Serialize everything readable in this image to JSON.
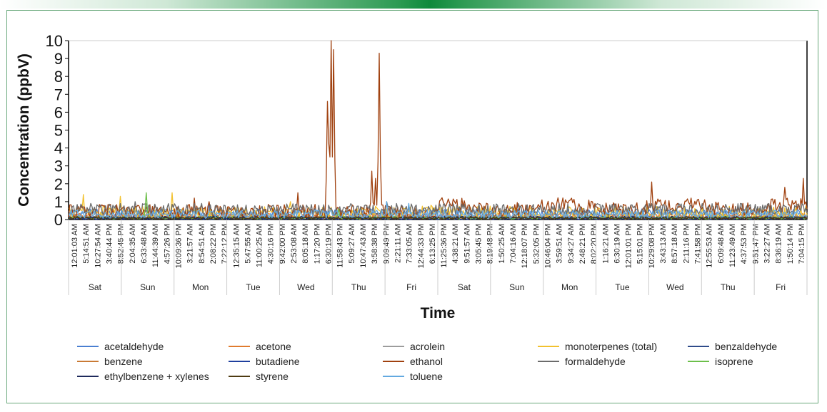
{
  "chart_data": {
    "type": "line",
    "title": "",
    "xlabel": "Time",
    "ylabel": "Concentration (ppbV)",
    "ylim": [
      0,
      10
    ],
    "yticks": [
      0,
      1,
      2,
      3,
      4,
      5,
      6,
      7,
      8,
      9,
      10
    ],
    "x_time_labels": [
      "12:01:03 AM",
      "5:14:51 AM",
      "10:27:54 AM",
      "3:40:44 PM",
      "8:52:45 PM",
      "2:04:35 AM",
      "6:33:48 AM",
      "11:44:39 AM",
      "4:57:26 PM",
      "10:09:36 PM",
      "3:21:57 AM",
      "8:54:51 AM",
      "2:08:22 PM",
      "7:22:12 PM",
      "12:35:15 AM",
      "5:47:55 AM",
      "11:00:25 AM",
      "4:30:16 PM",
      "9:42:00 PM",
      "2:53:08 AM",
      "8:05:18 AM",
      "1:17:20 PM",
      "6:30:19 PM",
      "11:58:43 PM",
      "5:09:27 AM",
      "10:47:43 AM",
      "3:58:38 PM",
      "9:09:49 PM",
      "2:21:11 AM",
      "7:33:05 AM",
      "12:44:33 PM",
      "6:13:25 PM",
      "11:25:36 PM",
      "4:38:21 AM",
      "9:51:57 AM",
      "3:05:45 PM",
      "8:19:48 PM",
      "1:50:25 AM",
      "7:04:16 AM",
      "12:18:07 PM",
      "5:32:05 PM",
      "10:46:04 PM",
      "3:59:51 AM",
      "9:34:27 AM",
      "2:48:21 PM",
      "8:02:20 PM",
      "1:16:21 AM",
      "6:30:19 AM",
      "12:01:01 PM",
      "5:15:01 PM",
      "10:29:08 PM",
      "3:43:13 AM",
      "8:57:18 AM",
      "2:11:16 PM",
      "7:41:58 PM",
      "12:55:53 AM",
      "6:09:48 AM",
      "11:23:49 AM",
      "4:37:53 PM",
      "9:51:47 PM",
      "3:22:27 AM",
      "8:36:19 AM",
      "1:50:14 PM",
      "7:04:15 PM"
    ],
    "days": [
      "Sat",
      "Sun",
      "Mon",
      "Tue",
      "Wed",
      "Thu",
      "Fri",
      "Sat",
      "Sun",
      "Mon",
      "Tue",
      "Wed",
      "Thu",
      "Fri"
    ],
    "series": [
      {
        "name": "acetaldehyde",
        "color": "#4a7fd1",
        "baseline": 0.35,
        "noise": 0.25,
        "peaks": [
          [
            0.19,
            0.9
          ],
          [
            0.61,
            0.6
          ]
        ]
      },
      {
        "name": "acetone",
        "color": "#e07b2e",
        "baseline": 0.2,
        "noise": 0.15,
        "peaks": [
          [
            0.05,
            0.6
          ],
          [
            0.45,
            0.5
          ]
        ]
      },
      {
        "name": "acrolein",
        "color": "#9c9c9c",
        "baseline": 0.15,
        "noise": 0.12,
        "peaks": []
      },
      {
        "name": "monoterpenes (total)",
        "color": "#f2c12e",
        "baseline": 0.4,
        "noise": 0.35,
        "peaks": [
          [
            0.02,
            1.4
          ],
          [
            0.07,
            1.3
          ],
          [
            0.14,
            1.5
          ],
          [
            0.3,
            1.0
          ],
          [
            0.49,
            0.8
          ]
        ]
      },
      {
        "name": "benzaldehyde",
        "color": "#2f4b8a",
        "baseline": 0.1,
        "noise": 0.08,
        "peaks": []
      },
      {
        "name": "benzene",
        "color": "#c97a35",
        "baseline": 0.1,
        "noise": 0.08,
        "peaks": []
      },
      {
        "name": "butadiene",
        "color": "#1f3f9e",
        "baseline": 0.05,
        "noise": 0.05,
        "peaks": []
      },
      {
        "name": "ethanol",
        "color": "#a0410f",
        "baseline": 0.45,
        "noise": 0.4,
        "peaks": [
          [
            0.17,
            1.2
          ],
          [
            0.19,
            1.0
          ],
          [
            0.31,
            1.5
          ],
          [
            0.35,
            6.6
          ],
          [
            0.352,
            4.3
          ],
          [
            0.355,
            10.0
          ],
          [
            0.359,
            9.5
          ],
          [
            0.41,
            2.7
          ],
          [
            0.415,
            2.3
          ],
          [
            0.42,
            9.3
          ],
          [
            0.79,
            2.1
          ],
          [
            0.97,
            1.8
          ],
          [
            0.995,
            2.3
          ]
        ]
      },
      {
        "name": "formaldehyde",
        "color": "#6b6b6b",
        "baseline": 0.55,
        "noise": 0.35,
        "peaks": [
          [
            0.03,
            0.9
          ],
          [
            0.09,
            1.0
          ],
          [
            0.18,
            0.9
          ],
          [
            0.2,
            0.8
          ],
          [
            0.43,
            1.0
          ],
          [
            0.46,
            0.8
          ]
        ]
      },
      {
        "name": "isoprene",
        "color": "#6cbf4a",
        "baseline": 0.1,
        "noise": 0.08,
        "peaks": [
          [
            0.105,
            1.5
          ],
          [
            0.365,
            0.6
          ]
        ]
      },
      {
        "name": "ethylbenzene + xylenes",
        "color": "#1e2a5c",
        "baseline": 0.1,
        "noise": 0.08,
        "peaks": []
      },
      {
        "name": "styrene",
        "color": "#4e3b12",
        "baseline": 0.08,
        "noise": 0.06,
        "peaks": []
      },
      {
        "name": "toluene",
        "color": "#63a9e0",
        "baseline": 0.3,
        "noise": 0.22,
        "peaks": [
          [
            0.43,
            1.0
          ],
          [
            0.46,
            0.9
          ]
        ]
      }
    ]
  }
}
